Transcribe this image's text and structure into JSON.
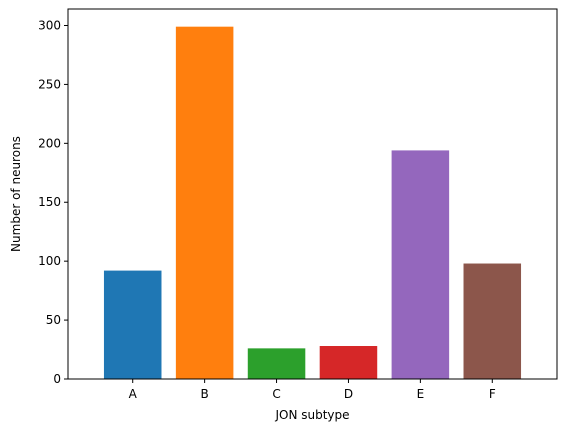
{
  "chart_data": {
    "type": "bar",
    "title": "",
    "xlabel": "JON subtype",
    "ylabel": "Number of neurons",
    "categories": [
      "A",
      "B",
      "C",
      "D",
      "E",
      "F"
    ],
    "values": [
      92,
      299,
      26,
      28,
      194,
      98
    ],
    "colors": [
      "#1f77b4",
      "#ff7f0e",
      "#2ca02c",
      "#d62728",
      "#9467bd",
      "#8c564b"
    ],
    "ylim": [
      0,
      314
    ],
    "yticks": [
      0,
      50,
      100,
      150,
      200,
      250,
      300
    ],
    "ytick_labels": [
      "0",
      "50",
      "100",
      "150",
      "200",
      "250",
      "300"
    ],
    "grid": false,
    "legend": "none"
  }
}
